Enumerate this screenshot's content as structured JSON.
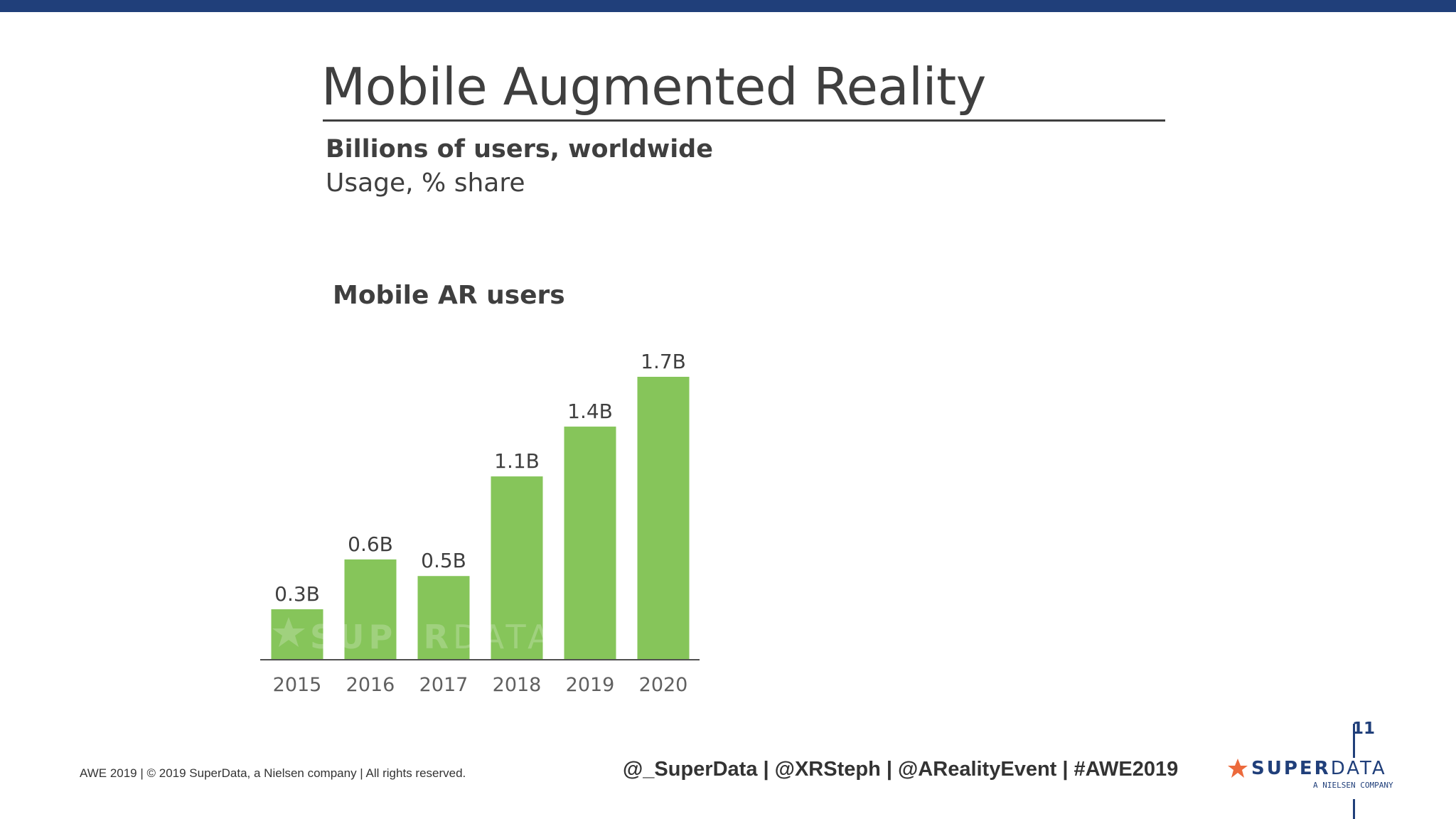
{
  "slide": {
    "title": "Mobile Augmented Reality",
    "subtitle_bold": "Billions of users, worldwide",
    "subtitle_regular": "Usage, % share",
    "page_number": "11"
  },
  "footer": {
    "copyright": "AWE 2019  |  © 2019 SuperData, a Nielsen company |  All rights reserved.",
    "social": "@_SuperData  |  @XRSteph  |  @ARealityEvent  |  #AWE2019"
  },
  "brand": {
    "name_bold": "SUPER",
    "name_regular": "DATA",
    "tagline": "A NIELSEN COMPANY",
    "watermark_bold": "SUPER",
    "watermark_regular": "DATA"
  },
  "colors": {
    "accent_navy": "#203f7a",
    "bar_green": "#86c55a",
    "star_orange": "#ec6a3c",
    "text": "#3f3f3f"
  },
  "chart_data": {
    "type": "bar",
    "title": "Mobile AR users",
    "categories": [
      "2015",
      "2016",
      "2017",
      "2018",
      "2019",
      "2020"
    ],
    "values": [
      0.3,
      0.6,
      0.5,
      1.1,
      1.4,
      1.7
    ],
    "data_labels": [
      "0.3B",
      "0.6B",
      "0.5B",
      "1.1B",
      "1.4B",
      "1.7B"
    ],
    "ylim": [
      0,
      1.7
    ],
    "grid": false,
    "legend": "none"
  }
}
